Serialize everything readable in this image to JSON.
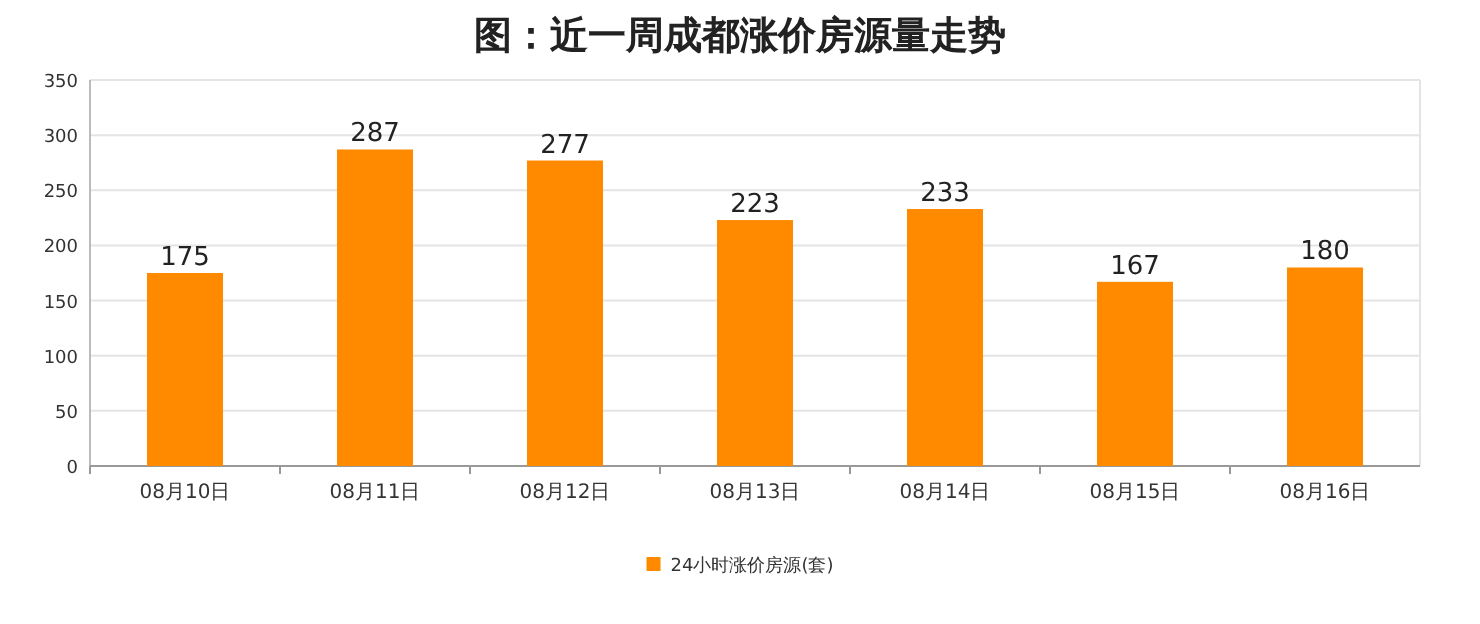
{
  "chart_data": {
    "type": "bar",
    "title": "图：近一周成都涨价房源量走势",
    "categories": [
      "08月10日",
      "08月11日",
      "08月12日",
      "08月13日",
      "08月14日",
      "08月15日",
      "08月16日"
    ],
    "series": [
      {
        "name": "24小时涨价房源(套)",
        "color": "#ff8a00",
        "values": [
          175,
          287,
          277,
          223,
          233,
          167,
          180
        ]
      }
    ],
    "ylim": [
      0,
      350
    ],
    "yticks": [
      0,
      50,
      100,
      150,
      200,
      250,
      300,
      350
    ],
    "grid": "y",
    "legend": "bottom",
    "data_labels": true
  }
}
